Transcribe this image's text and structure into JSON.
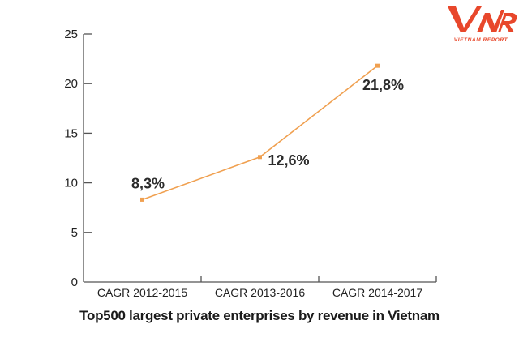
{
  "logo": {
    "mark": "VNR",
    "subtitle": "VIETNAM REPORT",
    "color": "#e8472b"
  },
  "chart_data": {
    "type": "line",
    "title": "Top500 largest private enterprises by revenue in Vietnam",
    "categories": [
      "CAGR 2012-2015",
      "CAGR 2013-2016",
      "CAGR 2014-2017"
    ],
    "series": [
      {
        "name": "CAGR",
        "values": [
          8.3,
          12.6,
          21.8
        ],
        "color": "#f0a050"
      }
    ],
    "data_labels": [
      "8,3%",
      "12,6%",
      "21,8%"
    ],
    "xlabel": "",
    "ylabel": "",
    "ylim": [
      0,
      25
    ],
    "yticks": [
      0,
      5,
      10,
      15,
      20,
      25
    ],
    "grid": false,
    "legend": "none"
  }
}
